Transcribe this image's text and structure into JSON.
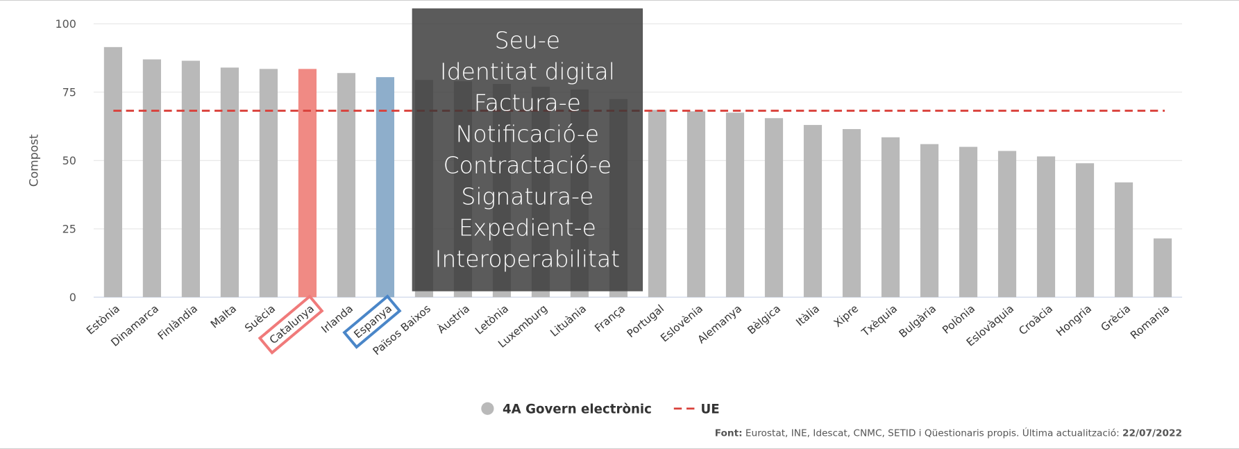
{
  "chart_data": {
    "type": "bar",
    "y_label": "Compost",
    "categories": [
      "Estònia",
      "Dinamarca",
      "Finlàndia",
      "Malta",
      "Suècia",
      "Catalunya",
      "Irlanda",
      "Espanya",
      "Països Baixos",
      "Àustria",
      "Letònia",
      "Luxemburg",
      "Lituània",
      "França",
      "Portugal",
      "Eslovènia",
      "Alemanya",
      "Bèlgica",
      "Itàlia",
      "Xipre",
      "Txèquia",
      "Bulgària",
      "Polònia",
      "Eslovàquia",
      "Croàcia",
      "Hongria",
      "Grècia",
      "Romania"
    ],
    "series": [
      {
        "name": "4A Govern electrònic",
        "color": "#b9b9b9",
        "values": [
          91.5,
          87,
          86.5,
          84,
          83.5,
          83.5,
          82,
          80.5,
          79.5,
          79,
          78,
          77,
          76,
          72.5,
          68.5,
          68,
          67.5,
          65.5,
          63,
          61.5,
          58.5,
          56,
          55,
          53.5,
          51.5,
          49,
          42,
          21.5
        ],
        "bar_colors": [
          "#b9b9b9",
          "#b9b9b9",
          "#b9b9b9",
          "#b9b9b9",
          "#b9b9b9",
          "#f08a84",
          "#b9b9b9",
          "#8eaecb",
          "#b9b9b9",
          "#b9b9b9",
          "#b9b9b9",
          "#b9b9b9",
          "#b9b9b9",
          "#b9b9b9",
          "#b9b9b9",
          "#b9b9b9",
          "#b9b9b9",
          "#b9b9b9",
          "#b9b9b9",
          "#b9b9b9",
          "#b9b9b9",
          "#b9b9b9",
          "#b9b9b9",
          "#b9b9b9",
          "#b9b9b9",
          "#b9b9b9",
          "#b9b9b9",
          "#b9b9b9"
        ]
      }
    ],
    "reference_line": {
      "name": "UE",
      "value": 68.2,
      "color": "#d9403a"
    },
    "ylim": [
      0,
      100
    ],
    "yticks": [
      0,
      25,
      50,
      75,
      100
    ],
    "grid": true,
    "overlay": [
      "Seu-e",
      "Identitat digital",
      "Factura-e",
      "Notificació-e",
      "Contractació-e",
      "Signatura-e",
      "Expedient-e",
      "Interoperabilitat"
    ],
    "source_label": "Font:",
    "source_text": "Eurostat, INE, Idescat, CNMC, SETID i Qüestionaris propis. Última actualització:",
    "source_date": "22/07/2022"
  }
}
